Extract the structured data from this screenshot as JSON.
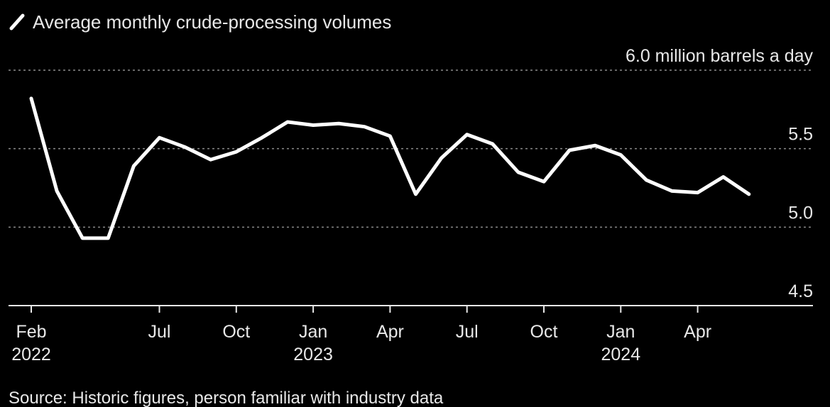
{
  "chart_data": {
    "type": "line",
    "title": "",
    "legend": [
      "Average monthly crude-processing volumes"
    ],
    "unit_label": "million barrels a day",
    "source": "Source: Historic figures, person familiar with industry data",
    "ylim": [
      4.5,
      6.0
    ],
    "y_ticks": [
      {
        "value": 6.0,
        "label": "6.0 million barrels a day"
      },
      {
        "value": 5.5,
        "label": "5.5"
      },
      {
        "value": 5.0,
        "label": "5.0"
      },
      {
        "value": 4.5,
        "label": "4.5"
      }
    ],
    "x_range": [
      0,
      29
    ],
    "x_ticks": [
      {
        "index": 0,
        "label": "Feb",
        "year": "2022"
      },
      {
        "index": 5,
        "label": "Jul",
        "year": ""
      },
      {
        "index": 8,
        "label": "Oct",
        "year": ""
      },
      {
        "index": 11,
        "label": "Jan",
        "year": "2023"
      },
      {
        "index": 14,
        "label": "Apr",
        "year": ""
      },
      {
        "index": 17,
        "label": "Jul",
        "year": ""
      },
      {
        "index": 20,
        "label": "Oct",
        "year": ""
      },
      {
        "index": 23,
        "label": "Jan",
        "year": "2024"
      },
      {
        "index": 26,
        "label": "Apr",
        "year": ""
      }
    ],
    "series": [
      {
        "name": "Average monthly crude-processing volumes",
        "color": "#ffffff",
        "x": [
          0,
          1,
          2,
          3,
          4,
          5,
          6,
          7,
          8,
          9,
          10,
          11,
          12,
          13,
          14,
          15,
          16,
          17,
          18,
          19,
          20,
          21,
          22,
          23,
          24,
          25,
          26,
          27,
          28
        ],
        "values": [
          5.82,
          5.23,
          4.93,
          4.93,
          5.39,
          5.57,
          5.51,
          5.43,
          5.48,
          5.57,
          5.67,
          5.65,
          5.66,
          5.64,
          5.58,
          5.21,
          5.44,
          5.59,
          5.53,
          5.35,
          5.29,
          5.49,
          5.52,
          5.46,
          5.3,
          5.23,
          5.22,
          5.32,
          5.21
        ]
      }
    ]
  }
}
